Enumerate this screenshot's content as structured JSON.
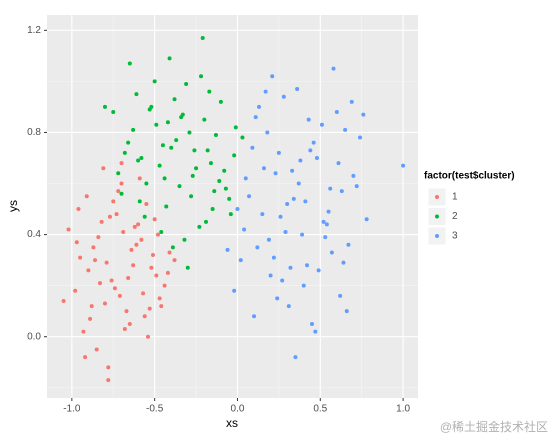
{
  "chart_data": {
    "type": "scatter",
    "x_label": "xs",
    "y_label": "ys",
    "legend_title": "factor(test$cluster)",
    "legend_position": "right",
    "grid": true,
    "xlim": [
      -1.15,
      1.09
    ],
    "ylim": [
      -0.24,
      1.26
    ],
    "xticks": [
      {
        "value": -1,
        "label": "-1.0"
      },
      {
        "value": -0.5,
        "label": "-0.5"
      },
      {
        "value": 0,
        "label": "0.0"
      },
      {
        "value": 0.5,
        "label": "0.5"
      },
      {
        "value": 1,
        "label": "1.0"
      }
    ],
    "yticks": [
      {
        "value": 0,
        "label": "0.0"
      },
      {
        "value": 0.4,
        "label": "0.4"
      },
      {
        "value": 0.8,
        "label": "0.8"
      },
      {
        "value": 1.2,
        "label": "1.2"
      }
    ],
    "minor_xticks": [
      -0.75,
      -0.25,
      0.25,
      0.75
    ],
    "minor_yticks": [
      -0.2,
      0.2,
      0.6,
      1
    ],
    "series": [
      {
        "name": "1",
        "color": "#F8766D",
        "x": [
          -0.95,
          -0.88,
          -0.82,
          -0.76,
          -0.7,
          -0.65,
          -0.58,
          -0.52,
          -0.47,
          -0.41,
          -1.02,
          -0.98,
          -0.91,
          -0.85,
          -0.79,
          -0.73,
          -0.67,
          -0.61,
          -0.55,
          -0.49,
          -0.93,
          -0.87,
          -0.81,
          -0.74,
          -0.69,
          -0.63,
          -0.56,
          -0.5,
          -0.44,
          -0.38,
          -1.05,
          -0.96,
          -0.9,
          -0.84,
          -0.78,
          -0.72,
          -0.66,
          -0.6,
          -0.54,
          -0.46,
          -0.97,
          -0.89,
          -0.83,
          -0.77,
          -0.71,
          -0.64,
          -0.59,
          -0.53,
          -0.48,
          -0.42,
          -0.92,
          -0.86,
          -0.8,
          -0.75,
          -0.68,
          -0.62,
          -0.57,
          -0.51,
          -0.78,
          -0.7
        ],
        "values": [
          0.31,
          0.12,
          0.45,
          0.22,
          0.6,
          0.05,
          0.38,
          0.27,
          0.15,
          0.33,
          0.42,
          0.18,
          0.55,
          -0.05,
          0.29,
          0.48,
          0.1,
          0.36,
          0.52,
          0.24,
          0.02,
          0.35,
          0.66,
          0.19,
          0.41,
          0.28,
          0.08,
          0.46,
          0.2,
          0.3,
          0.14,
          0.5,
          0.26,
          0.39,
          -0.12,
          0.57,
          0.23,
          0.44,
          0.0,
          0.12,
          0.37,
          0.07,
          0.21,
          0.47,
          0.16,
          0.34,
          0.62,
          0.11,
          0.4,
          0.25,
          -0.08,
          0.3,
          0.13,
          0.53,
          0.03,
          0.43,
          0.17,
          0.32,
          -0.17,
          0.68
        ]
      },
      {
        "name": "2",
        "color": "#00BA38",
        "x": [
          -0.75,
          -0.68,
          -0.61,
          -0.55,
          -0.49,
          -0.43,
          -0.37,
          -0.31,
          -0.25,
          -0.19,
          -0.13,
          -0.07,
          -0.01,
          -0.72,
          -0.65,
          -0.58,
          -0.52,
          -0.46,
          -0.4,
          -0.34,
          -0.28,
          -0.22,
          -0.16,
          -0.1,
          -0.04,
          0.03,
          -0.7,
          -0.63,
          -0.56,
          -0.5,
          -0.44,
          -0.38,
          -0.32,
          -0.26,
          -0.2,
          -0.14,
          -0.08,
          -0.02,
          -0.66,
          -0.59,
          -0.53,
          -0.47,
          -0.41,
          -0.35,
          -0.29,
          -0.23,
          -0.17,
          -0.11,
          -0.05,
          -0.6,
          -0.45,
          -0.39,
          -0.33,
          -0.27,
          -0.21,
          -0.15,
          -0.42,
          -0.3,
          -0.18,
          -0.8
        ],
        "values": [
          0.88,
          0.72,
          0.95,
          0.6,
          0.83,
          0.51,
          0.77,
          0.99,
          0.66,
          0.45,
          0.79,
          0.58,
          0.82,
          0.64,
          1.07,
          0.7,
          0.9,
          0.41,
          0.74,
          0.86,
          0.55,
          1.02,
          0.68,
          0.92,
          0.48,
          0.78,
          0.56,
          0.81,
          0.47,
          1.0,
          0.62,
          0.93,
          0.38,
          0.73,
          0.85,
          0.57,
          0.65,
          0.71,
          0.76,
          0.53,
          0.89,
          0.67,
          1.09,
          0.59,
          0.8,
          0.43,
          0.96,
          0.61,
          0.54,
          0.69,
          0.75,
          0.35,
          0.87,
          0.63,
          1.17,
          0.5,
          0.84,
          0.27,
          0.73,
          0.9
        ]
      },
      {
        "name": "3",
        "color": "#619CFF",
        "x": [
          0.05,
          0.12,
          0.18,
          0.24,
          0.3,
          0.36,
          0.42,
          0.48,
          0.54,
          0.6,
          0.66,
          0.72,
          0.02,
          0.09,
          0.15,
          0.21,
          0.27,
          0.33,
          0.39,
          0.45,
          0.51,
          0.57,
          0.63,
          0.69,
          0.78,
          -0.02,
          0.07,
          0.13,
          0.19,
          0.25,
          0.31,
          0.37,
          0.43,
          0.49,
          0.55,
          0.61,
          0.67,
          0.74,
          0.04,
          0.1,
          0.16,
          0.22,
          0.28,
          0.34,
          0.4,
          0.46,
          0.52,
          0.58,
          0.64,
          0.7,
          0.0,
          0.11,
          0.2,
          0.29,
          0.38,
          0.47,
          0.56,
          0.65,
          -0.06,
          0.17,
          0.26,
          0.35,
          0.44,
          0.53,
          0.62,
          0.76,
          1.0,
          0.32,
          0.41,
          0.23
        ],
        "values": [
          0.62,
          0.35,
          0.8,
          0.15,
          0.52,
          0.97,
          0.28,
          0.7,
          0.44,
          0.88,
          0.1,
          0.59,
          0.3,
          0.74,
          0.48,
          1.02,
          0.22,
          0.65,
          0.4,
          0.05,
          0.83,
          0.33,
          0.57,
          0.92,
          0.46,
          0.18,
          0.55,
          0.9,
          0.38,
          0.72,
          0.12,
          0.6,
          0.85,
          0.26,
          0.49,
          0.68,
          0.36,
          0.78,
          0.42,
          0.08,
          0.66,
          0.31,
          0.94,
          0.54,
          0.2,
          0.76,
          0.45,
          1.05,
          0.29,
          0.63,
          0.5,
          0.86,
          0.24,
          0.41,
          0.69,
          0.02,
          0.58,
          0.81,
          0.34,
          0.96,
          0.47,
          -0.08,
          0.73,
          0.39,
          0.16,
          0.87,
          0.67,
          0.27,
          0.53,
          0.64
        ]
      }
    ]
  },
  "watermark": "@稀土掘金技术社区"
}
